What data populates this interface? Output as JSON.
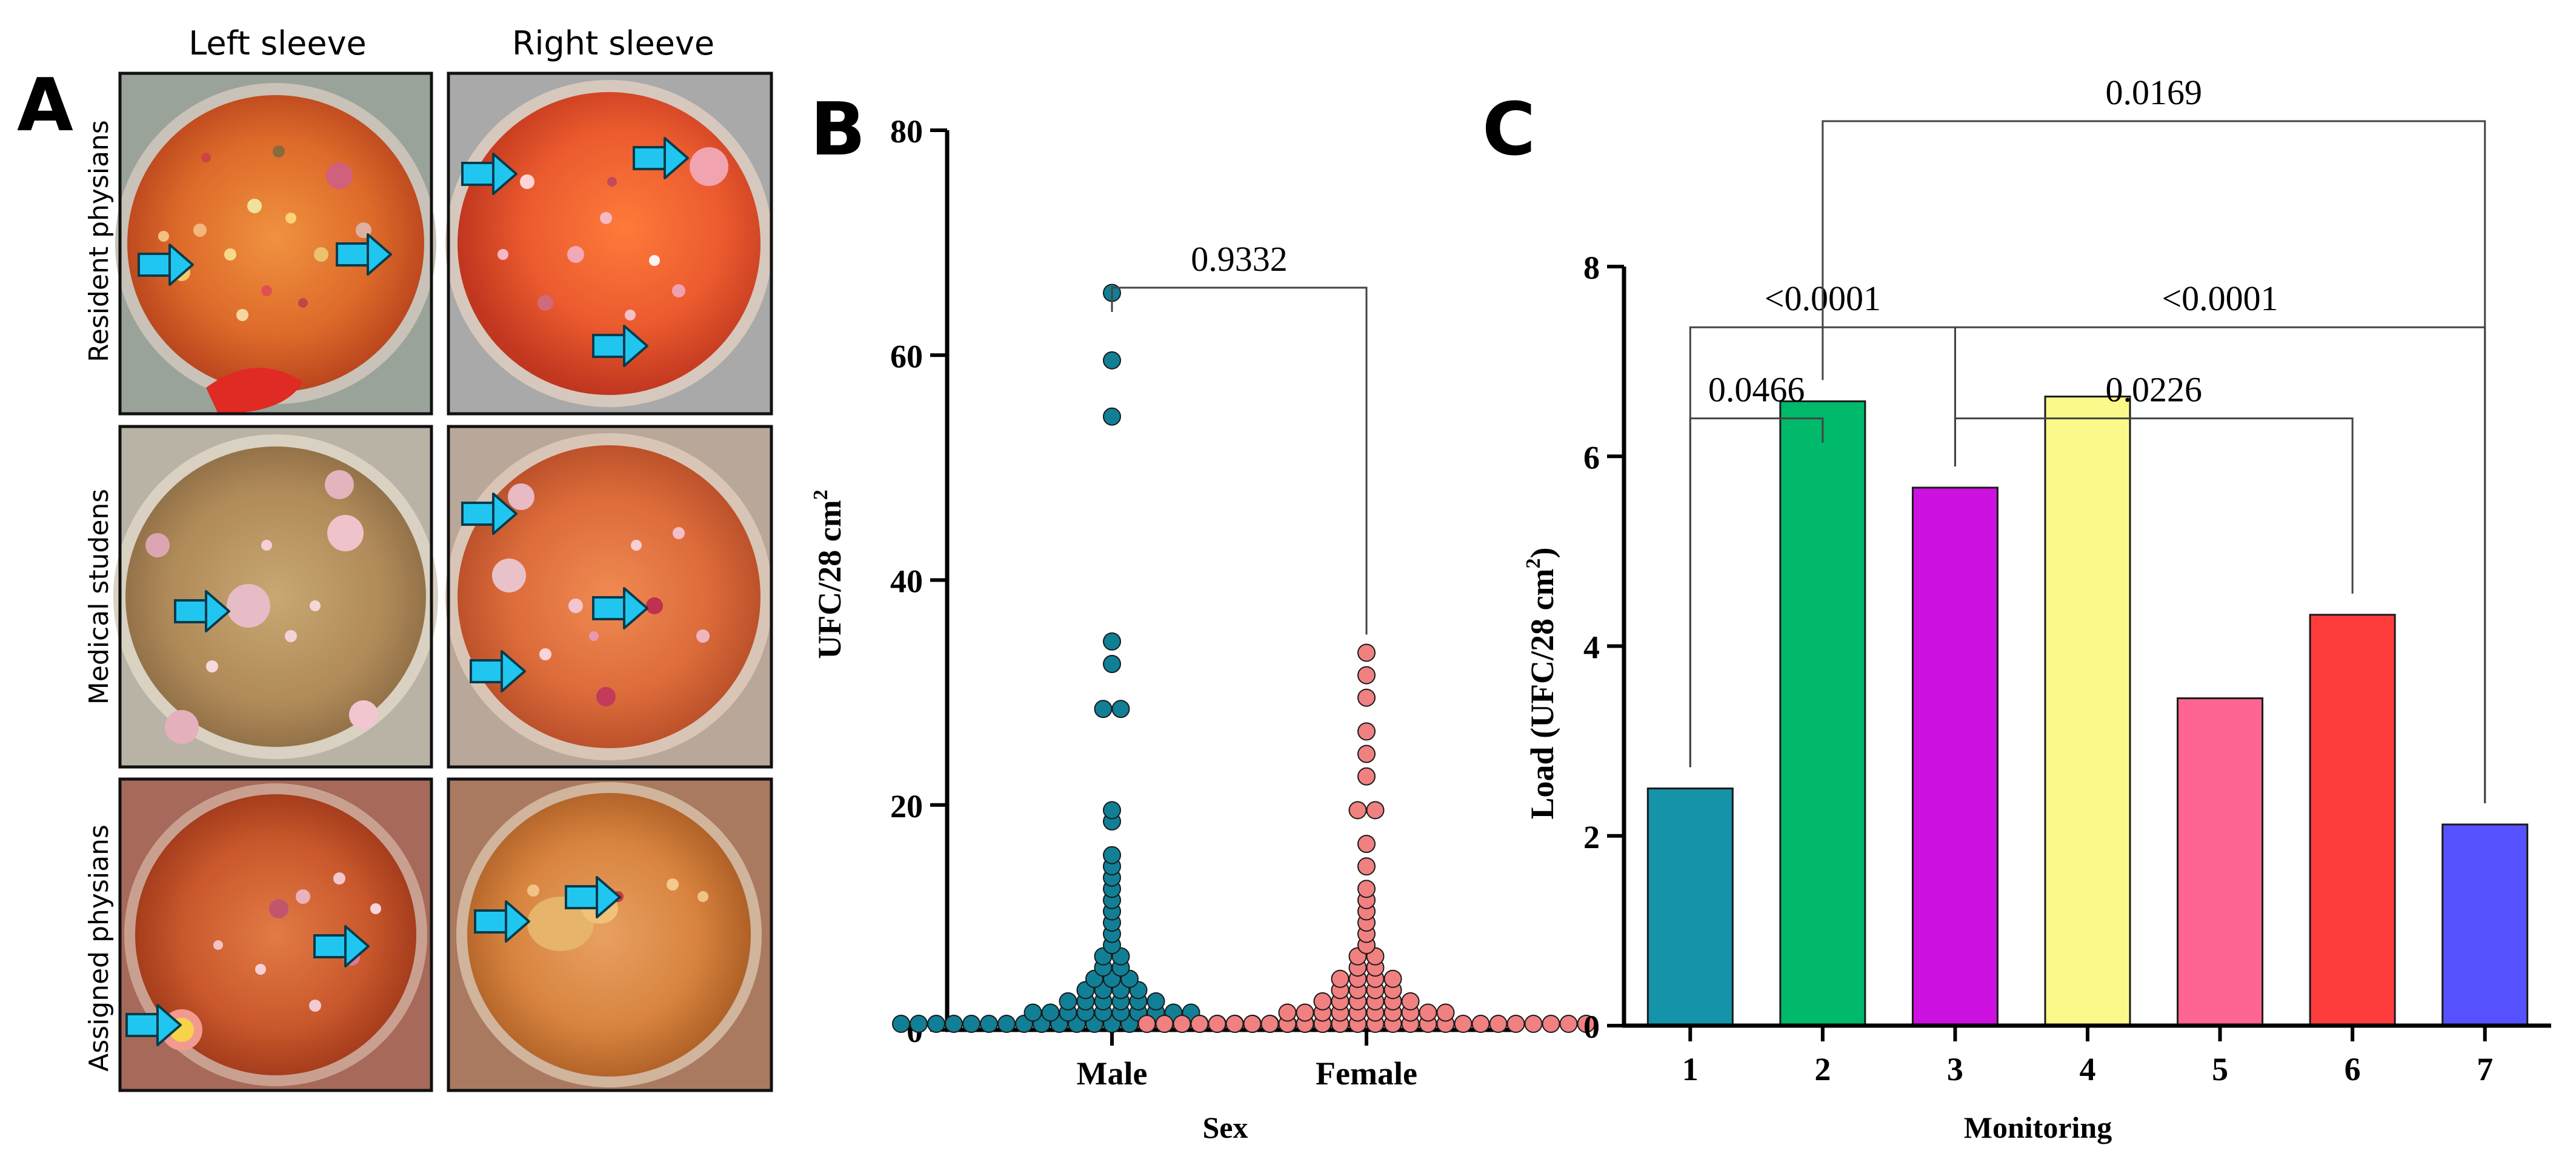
{
  "panel_a": {
    "letter": "A",
    "col_headers": [
      "Left sleeve",
      "Right sleeve"
    ],
    "row_labels": [
      "Resident physians",
      "Medical studens",
      "Assigned physians"
    ]
  },
  "panel_b_letter": "B",
  "panel_c_letter": "C",
  "chart_data": [
    {
      "type": "scatter",
      "panel": "B",
      "xlabel": "Sex",
      "ylabel": "UFC/28 cm",
      "ylabel_sup": "2",
      "ylim": [
        0,
        80
      ],
      "yticks": [
        "0",
        "20",
        "40",
        "60",
        "80"
      ],
      "categories": [
        "Male",
        "Female"
      ],
      "series": [
        {
          "name": "Male",
          "color": "#117f95",
          "values": [
            65,
            59,
            54,
            34,
            32,
            28,
            28,
            19,
            18,
            15,
            14,
            13,
            12,
            11,
            10,
            9,
            8,
            7,
            6,
            6,
            5,
            5,
            4,
            4,
            4,
            3,
            3,
            3,
            3,
            2,
            2,
            2,
            2,
            2,
            2,
            1,
            1,
            1,
            1,
            1,
            1,
            1,
            1,
            1,
            1,
            0,
            0,
            0,
            0,
            0,
            0,
            0,
            0,
            0,
            0,
            0,
            0,
            0,
            0,
            0,
            0,
            0,
            0,
            0,
            0,
            0,
            0,
            0,
            0,
            0
          ]
        },
        {
          "name": "Female",
          "color": "#f18080",
          "values": [
            33,
            31,
            29,
            26,
            24,
            22,
            19,
            19,
            16,
            14,
            12,
            11,
            10,
            9,
            8,
            7,
            6,
            6,
            5,
            5,
            4,
            4,
            4,
            4,
            3,
            3,
            3,
            3,
            2,
            2,
            2,
            2,
            2,
            2,
            1,
            1,
            1,
            1,
            1,
            1,
            1,
            1,
            1,
            1,
            0,
            0,
            0,
            0,
            0,
            0,
            0,
            0,
            0,
            0,
            0,
            0,
            0,
            0,
            0,
            0,
            0,
            0,
            0,
            0,
            0,
            0,
            0,
            0,
            0,
            0
          ]
        }
      ],
      "annotations": [
        {
          "pair": [
            "Male",
            "Female"
          ],
          "p": "0.9332"
        }
      ]
    },
    {
      "type": "bar",
      "panel": "C",
      "title": "",
      "xlabel": "Monitoring",
      "ylabel": "Load (UFC/28 cm",
      "ylabel_sup": "2",
      "ylabel_end": ")",
      "ylim": [
        0,
        8
      ],
      "yticks": [
        "0",
        "2",
        "4",
        "6",
        "8"
      ],
      "categories": [
        "1",
        "2",
        "3",
        "4",
        "5",
        "6",
        "7"
      ],
      "values": [
        2.5,
        6.58,
        5.67,
        6.63,
        3.45,
        4.33,
        2.12
      ],
      "colors": [
        "#1593a8",
        "#00b96b",
        "#cc11e0",
        "#fbf98a",
        "#ff6592",
        "#ff3c3c",
        "#5652ff"
      ],
      "annotations": [
        {
          "pair": [
            "1",
            "2"
          ],
          "p": "0.0466"
        },
        {
          "pair": [
            "1",
            "3"
          ],
          "p": "<0.0001"
        },
        {
          "pair": [
            "3",
            "6"
          ],
          "p": "0.0226"
        },
        {
          "pair": [
            "3",
            "7"
          ],
          "p": "<0.0001"
        },
        {
          "pair": [
            "2",
            "7"
          ],
          "p": "0.0169"
        }
      ]
    }
  ]
}
